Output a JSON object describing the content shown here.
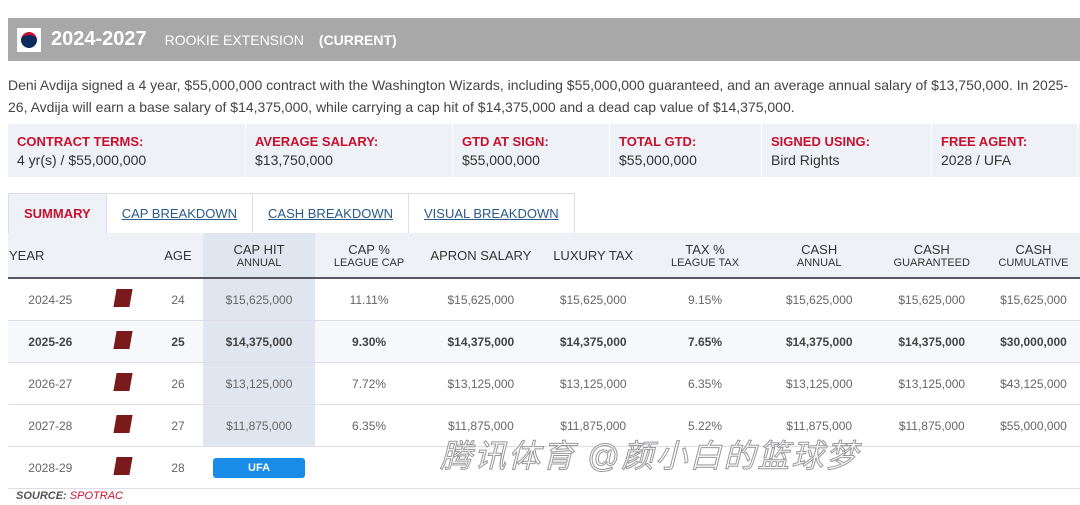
{
  "header": {
    "years": "2024-2027",
    "type": "ROOKIE EXTENSION",
    "status": "(CURRENT)"
  },
  "description": "Deni Avdija signed a 4 year, $55,000,000 contract with the Washington Wizards, including $55,000,000 guaranteed, and an average annual salary of $13,750,000. In 2025-26, Avdija will earn a base salary of $14,375,000, while carrying a cap hit of $14,375,000 and a dead cap value of $14,375,000.",
  "terms": [
    {
      "label": "CONTRACT TERMS:",
      "value": "4 yr(s) / $55,000,000"
    },
    {
      "label": "AVERAGE SALARY:",
      "value": "$13,750,000"
    },
    {
      "label": "GTD AT SIGN:",
      "value": "$55,000,000"
    },
    {
      "label": "TOTAL GTD:",
      "value": "$55,000,000"
    },
    {
      "label": "SIGNED USING:",
      "value": "Bird Rights"
    },
    {
      "label": "FREE AGENT:",
      "value": "2028 / UFA"
    }
  ],
  "tabs": [
    "SUMMARY",
    "CAP BREAKDOWN",
    "CASH BREAKDOWN",
    "VISUAL BREAKDOWN"
  ],
  "columns": [
    [
      "YEAR",
      ""
    ],
    [
      "",
      ""
    ],
    [
      "AGE",
      ""
    ],
    [
      "CAP HIT",
      "ANNUAL"
    ],
    [
      "CAP %",
      "LEAGUE CAP"
    ],
    [
      "APRON SALARY",
      ""
    ],
    [
      "LUXURY TAX",
      ""
    ],
    [
      "TAX %",
      "LEAGUE TAX"
    ],
    [
      "CASH",
      "ANNUAL"
    ],
    [
      "CASH",
      "GUARANTEED"
    ],
    [
      "CASH",
      "CUMULATIVE"
    ]
  ],
  "rows": [
    [
      "2024-25",
      "24",
      "$15,625,000",
      "11.11%",
      "$15,625,000",
      "$15,625,000",
      "9.15%",
      "$15,625,000",
      "$15,625,000",
      "$15,625,000"
    ],
    [
      "2025-26",
      "25",
      "$14,375,000",
      "9.30%",
      "$14,375,000",
      "$14,375,000",
      "7.65%",
      "$14,375,000",
      "$14,375,000",
      "$30,000,000"
    ],
    [
      "2026-27",
      "26",
      "$13,125,000",
      "7.72%",
      "$13,125,000",
      "$13,125,000",
      "6.35%",
      "$13,125,000",
      "$13,125,000",
      "$43,125,000"
    ],
    [
      "2027-28",
      "27",
      "$11,875,000",
      "6.35%",
      "$11,875,000",
      "$11,875,000",
      "5.22%",
      "$11,875,000",
      "$11,875,000",
      "$55,000,000"
    ]
  ],
  "final_row": {
    "year": "2028-29",
    "age": "28",
    "status": "UFA"
  },
  "source": {
    "label": "SOURCE:",
    "name": "SPOTRAC"
  },
  "watermark": "腾讯体育 @颜小白的篮球梦"
}
